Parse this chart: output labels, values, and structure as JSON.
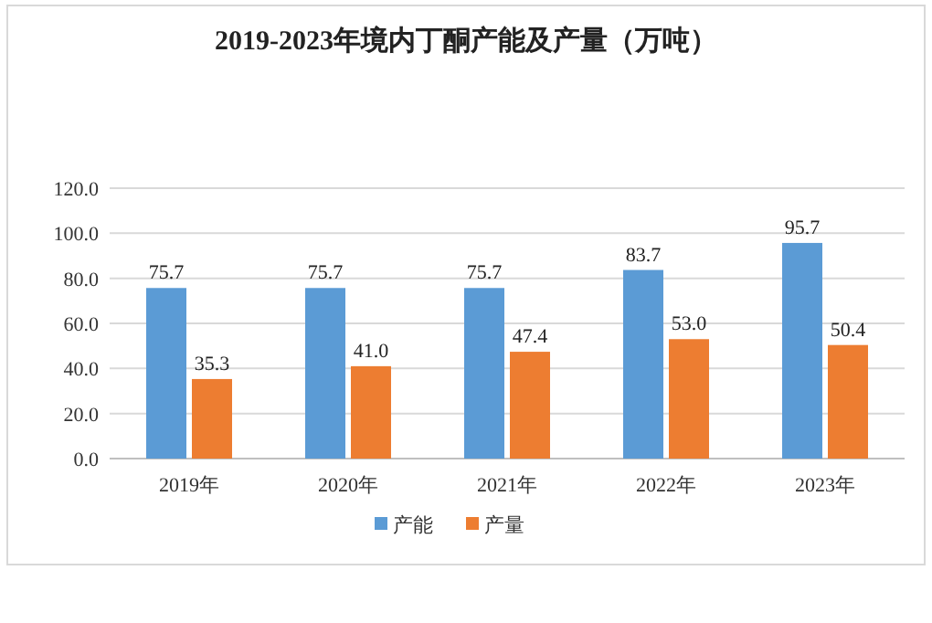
{
  "chart_data": {
    "type": "bar",
    "title": "2019-2023年境内丁酮产能及产量（万吨）",
    "categories": [
      "2019年",
      "2020年",
      "2021年",
      "2022年",
      "2023年"
    ],
    "series": [
      {
        "name": "产能",
        "color": "#5b9bd5",
        "values": [
          75.7,
          75.7,
          75.7,
          83.7,
          95.7
        ],
        "value_labels": [
          "75.7",
          "75.7",
          "75.7",
          "83.7",
          "95.7"
        ]
      },
      {
        "name": "产量",
        "color": "#ed7d31",
        "values": [
          35.3,
          41.0,
          47.4,
          53.0,
          50.4
        ],
        "value_labels": [
          "35.3",
          "41.0",
          "47.4",
          "53.0",
          "50.4"
        ]
      }
    ],
    "ylim": [
      0,
      120
    ],
    "yticks": [
      {
        "value": 0,
        "label": "0.0"
      },
      {
        "value": 20,
        "label": "20.0"
      },
      {
        "value": 40,
        "label": "40.0"
      },
      {
        "value": 60,
        "label": "60.0"
      },
      {
        "value": 80,
        "label": "80.0"
      },
      {
        "value": 100,
        "label": "100.0"
      },
      {
        "value": 120,
        "label": "120.0"
      }
    ],
    "grid": "y",
    "legend": "bottom"
  }
}
